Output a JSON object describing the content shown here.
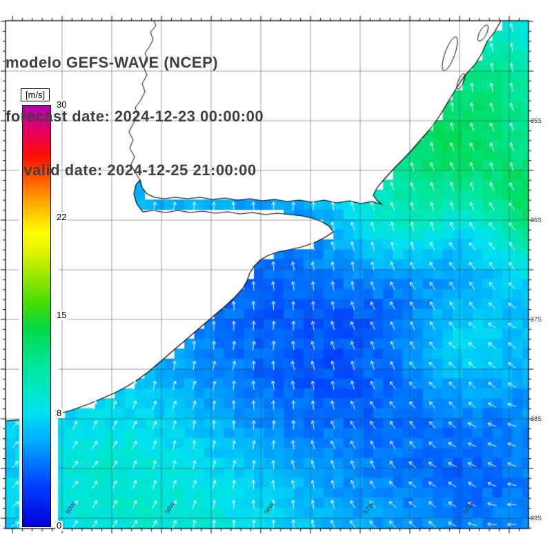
{
  "header": {
    "model_line": "modelo GEFS-WAVE (NCEP)",
    "forecast_line": "forecast date: 2024-12-23 00:00:00",
    "valid_line": "    valid date: 2024-12-25 21:00:00"
  },
  "colorbar": {
    "unit_label": "[m/s]",
    "min": 0,
    "max": 30,
    "ticks": [
      30,
      22,
      15,
      8,
      0
    ],
    "gradient": [
      {
        "at": 0.0,
        "color": "#0000dc"
      },
      {
        "at": 0.1,
        "color": "#0041ff"
      },
      {
        "at": 0.2,
        "color": "#00aaff"
      },
      {
        "at": 0.27,
        "color": "#00e0f0"
      },
      {
        "at": 0.33,
        "color": "#00e8c0"
      },
      {
        "at": 0.4,
        "color": "#00e48c"
      },
      {
        "at": 0.47,
        "color": "#00d848"
      },
      {
        "at": 0.53,
        "color": "#46dc00"
      },
      {
        "at": 0.6,
        "color": "#a0e800"
      },
      {
        "at": 0.66,
        "color": "#e8f400"
      },
      {
        "at": 0.7,
        "color": "#ffff00"
      },
      {
        "at": 0.77,
        "color": "#ffa800"
      },
      {
        "at": 0.83,
        "color": "#ff5400"
      },
      {
        "at": 0.88,
        "color": "#ff0e00"
      },
      {
        "at": 0.94,
        "color": "#e40062"
      },
      {
        "at": 1.0,
        "color": "#b400b4"
      }
    ]
  },
  "map": {
    "lat_labels": [
      "35S",
      "36S",
      "37S",
      "38S",
      "39S"
    ],
    "lon_labels": [
      "60W",
      "59W",
      "58W",
      "57W",
      "56W"
    ],
    "colors": {
      "arrow": "#ffffff",
      "coastline": "#000000",
      "land": "#ffffff",
      "grid": "#464646",
      "frame": "#000000",
      "title_text": "#3f3f3f"
    }
  }
}
